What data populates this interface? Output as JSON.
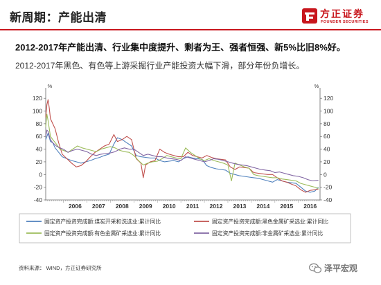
{
  "header": {
    "title": "新周期：产能出清",
    "logo_cn": "方正证券",
    "logo_en": "FOUNDER SECURITIES"
  },
  "headline": "2012-2017年产能出清、行业集中度提升、剩者为王、强者恒强、新5%比旧8%好。",
  "subline": "2012-2017年黑色、有色等上游采掘行业产能投资大幅下滑，部分年份负增长。",
  "source": "资料来源： WIND，方正证券研究所",
  "watermark": "泽平宏观",
  "colors": {
    "brand_red": "#c8161d",
    "coal": "#4f81bd",
    "ferrous": "#c0504d",
    "nonferrous": "#9bbb59",
    "nonmetal": "#8064a2"
  },
  "chart_data": {
    "type": "line",
    "title": "",
    "xlabel": "",
    "ylabel": "",
    "y_unit_left": "%",
    "y_unit_right": "%",
    "ylim": [
      -40,
      130
    ],
    "yticks_left": [
      -40,
      -20,
      0,
      20,
      40,
      60,
      80,
      100,
      120
    ],
    "yticks_right": [
      -40,
      -20,
      0,
      20,
      40,
      60,
      80,
      100,
      120
    ],
    "xlim": [
      2005.25,
      2016.92
    ],
    "xticks": [
      "2006",
      "2007",
      "2008",
      "2009",
      "2010",
      "2011",
      "2012",
      "2013",
      "2014",
      "2015",
      "2016"
    ],
    "grid": false,
    "legend_position": "bottom",
    "series": [
      {
        "name": "固定资产投资完成额:煤炭开采和洗选业:累计同比",
        "color": "#4f81bd",
        "points": [
          [
            2005.25,
            55
          ],
          [
            2005.35,
            65
          ],
          [
            2005.45,
            52
          ],
          [
            2005.55,
            50
          ],
          [
            2005.65,
            42
          ],
          [
            2005.8,
            35
          ],
          [
            2005.95,
            28
          ],
          [
            2006.15,
            25
          ],
          [
            2006.35,
            22
          ],
          [
            2006.55,
            20
          ],
          [
            2006.75,
            18
          ],
          [
            2006.95,
            20
          ],
          [
            2007.15,
            22
          ],
          [
            2007.35,
            25
          ],
          [
            2007.55,
            27
          ],
          [
            2007.75,
            30
          ],
          [
            2007.95,
            32
          ],
          [
            2008.15,
            48
          ],
          [
            2008.3,
            58
          ],
          [
            2008.5,
            55
          ],
          [
            2008.7,
            50
          ],
          [
            2008.9,
            45
          ],
          [
            2009.1,
            30
          ],
          [
            2009.3,
            28
          ],
          [
            2009.5,
            27
          ],
          [
            2009.7,
            26
          ],
          [
            2009.9,
            26
          ],
          [
            2010.1,
            22
          ],
          [
            2010.3,
            20
          ],
          [
            2010.5,
            21
          ],
          [
            2010.7,
            22
          ],
          [
            2010.9,
            20
          ],
          [
            2011.1,
            25
          ],
          [
            2011.3,
            28
          ],
          [
            2011.5,
            26
          ],
          [
            2011.7,
            25
          ],
          [
            2011.9,
            24
          ],
          [
            2012.1,
            14
          ],
          [
            2012.3,
            11
          ],
          [
            2012.5,
            9
          ],
          [
            2012.7,
            8
          ],
          [
            2012.9,
            7
          ],
          [
            2013.1,
            2
          ],
          [
            2013.3,
            0
          ],
          [
            2013.5,
            -2
          ],
          [
            2013.7,
            -3
          ],
          [
            2013.9,
            -4
          ],
          [
            2014.1,
            -5
          ],
          [
            2014.3,
            -6
          ],
          [
            2014.5,
            -8
          ],
          [
            2014.7,
            -10
          ],
          [
            2014.9,
            -12
          ],
          [
            2015.1,
            -8
          ],
          [
            2015.3,
            -10
          ],
          [
            2015.5,
            -12
          ],
          [
            2015.7,
            -13
          ],
          [
            2015.9,
            -14
          ],
          [
            2016.1,
            -20
          ],
          [
            2016.3,
            -26
          ],
          [
            2016.5,
            -28
          ],
          [
            2016.7,
            -26
          ],
          [
            2016.85,
            -20
          ]
        ]
      },
      {
        "name": "固定资产投资完成额:黑色金属矿采选业:累计同比",
        "color": "#c0504d",
        "points": [
          [
            2005.25,
            90
          ],
          [
            2005.3,
            110
          ],
          [
            2005.35,
            118
          ],
          [
            2005.4,
            105
          ],
          [
            2005.45,
            88
          ],
          [
            2005.55,
            80
          ],
          [
            2005.65,
            72
          ],
          [
            2005.8,
            50
          ],
          [
            2005.95,
            32
          ],
          [
            2006.15,
            25
          ],
          [
            2006.35,
            18
          ],
          [
            2006.55,
            12
          ],
          [
            2006.75,
            14
          ],
          [
            2006.95,
            20
          ],
          [
            2007.15,
            28
          ],
          [
            2007.35,
            35
          ],
          [
            2007.55,
            40
          ],
          [
            2007.75,
            45
          ],
          [
            2007.95,
            48
          ],
          [
            2008.15,
            63
          ],
          [
            2008.3,
            52
          ],
          [
            2008.5,
            55
          ],
          [
            2008.7,
            60
          ],
          [
            2008.9,
            55
          ],
          [
            2009.1,
            25
          ],
          [
            2009.3,
            18
          ],
          [
            2009.4,
            -5
          ],
          [
            2009.5,
            15
          ],
          [
            2009.7,
            20
          ],
          [
            2009.9,
            22
          ],
          [
            2010.1,
            40
          ],
          [
            2010.3,
            35
          ],
          [
            2010.5,
            32
          ],
          [
            2010.7,
            30
          ],
          [
            2010.9,
            28
          ],
          [
            2011.1,
            28
          ],
          [
            2011.3,
            35
          ],
          [
            2011.5,
            30
          ],
          [
            2011.7,
            28
          ],
          [
            2011.9,
            26
          ],
          [
            2012.1,
            30
          ],
          [
            2012.3,
            27
          ],
          [
            2012.5,
            25
          ],
          [
            2012.7,
            24
          ],
          [
            2012.9,
            23
          ],
          [
            2013.1,
            12
          ],
          [
            2013.3,
            8
          ],
          [
            2013.5,
            12
          ],
          [
            2013.7,
            11
          ],
          [
            2013.9,
            10
          ],
          [
            2014.1,
            3
          ],
          [
            2014.3,
            2
          ],
          [
            2014.5,
            1
          ],
          [
            2014.7,
            0
          ],
          [
            2014.9,
            0
          ],
          [
            2015.1,
            -5
          ],
          [
            2015.3,
            -10
          ],
          [
            2015.5,
            -12
          ],
          [
            2015.7,
            -15
          ],
          [
            2015.9,
            -18
          ],
          [
            2016.1,
            -24
          ],
          [
            2016.3,
            -28
          ],
          [
            2016.5,
            -25
          ],
          [
            2016.7,
            -24
          ],
          [
            2016.85,
            -23
          ]
        ]
      },
      {
        "name": "固定资产投资完成额:有色金属矿采选业:累计同比",
        "color": "#9bbb59",
        "points": [
          [
            2005.25,
            75
          ],
          [
            2005.3,
            95
          ],
          [
            2005.35,
            85
          ],
          [
            2005.45,
            60
          ],
          [
            2005.55,
            55
          ],
          [
            2005.7,
            48
          ],
          [
            2005.85,
            40
          ],
          [
            2006.0,
            38
          ],
          [
            2006.2,
            35
          ],
          [
            2006.4,
            40
          ],
          [
            2006.6,
            45
          ],
          [
            2006.8,
            42
          ],
          [
            2007.0,
            40
          ],
          [
            2007.2,
            38
          ],
          [
            2007.4,
            36
          ],
          [
            2007.6,
            40
          ],
          [
            2007.8,
            42
          ],
          [
            2008.0,
            44
          ],
          [
            2008.2,
            42
          ],
          [
            2008.4,
            38
          ],
          [
            2008.6,
            36
          ],
          [
            2008.8,
            35
          ],
          [
            2009.0,
            30
          ],
          [
            2009.2,
            22
          ],
          [
            2009.4,
            15
          ],
          [
            2009.6,
            18
          ],
          [
            2009.8,
            20
          ],
          [
            2010.0,
            21
          ],
          [
            2010.2,
            25
          ],
          [
            2010.4,
            30
          ],
          [
            2010.6,
            28
          ],
          [
            2010.8,
            26
          ],
          [
            2011.0,
            25
          ],
          [
            2011.2,
            42
          ],
          [
            2011.4,
            35
          ],
          [
            2011.6,
            30
          ],
          [
            2011.8,
            25
          ],
          [
            2012.0,
            22
          ],
          [
            2012.2,
            25
          ],
          [
            2012.4,
            22
          ],
          [
            2012.6,
            20
          ],
          [
            2012.8,
            18
          ],
          [
            2013.0,
            15
          ],
          [
            2013.15,
            -10
          ],
          [
            2013.3,
            18
          ],
          [
            2013.5,
            15
          ],
          [
            2013.7,
            12
          ],
          [
            2013.9,
            10
          ],
          [
            2014.1,
            0
          ],
          [
            2014.3,
            -2
          ],
          [
            2014.5,
            -3
          ],
          [
            2014.7,
            -4
          ],
          [
            2014.9,
            -5
          ],
          [
            2015.1,
            -5
          ],
          [
            2015.3,
            -7
          ],
          [
            2015.5,
            -8
          ],
          [
            2015.7,
            -9
          ],
          [
            2015.9,
            -10
          ],
          [
            2016.1,
            -14
          ],
          [
            2016.3,
            -16
          ],
          [
            2016.5,
            -18
          ],
          [
            2016.7,
            -20
          ],
          [
            2016.85,
            -22
          ]
        ]
      },
      {
        "name": "固定资产投资完成额:非金属矿采选业:累计同比",
        "color": "#8064a2",
        "points": [
          [
            2005.25,
            60
          ],
          [
            2005.3,
            70
          ],
          [
            2005.35,
            68
          ],
          [
            2005.45,
            55
          ],
          [
            2005.55,
            50
          ],
          [
            2005.7,
            45
          ],
          [
            2005.85,
            42
          ],
          [
            2006.0,
            40
          ],
          [
            2006.2,
            35
          ],
          [
            2006.4,
            38
          ],
          [
            2006.6,
            40
          ],
          [
            2006.8,
            38
          ],
          [
            2007.0,
            36
          ],
          [
            2007.2,
            32
          ],
          [
            2007.4,
            30
          ],
          [
            2007.6,
            32
          ],
          [
            2007.8,
            33
          ],
          [
            2008.0,
            34
          ],
          [
            2008.2,
            36
          ],
          [
            2008.4,
            40
          ],
          [
            2008.6,
            42
          ],
          [
            2008.8,
            40
          ],
          [
            2009.0,
            40
          ],
          [
            2009.2,
            35
          ],
          [
            2009.4,
            30
          ],
          [
            2009.6,
            32
          ],
          [
            2009.8,
            30
          ],
          [
            2010.0,
            28
          ],
          [
            2010.2,
            28
          ],
          [
            2010.4,
            26
          ],
          [
            2010.6,
            25
          ],
          [
            2010.8,
            24
          ],
          [
            2011.0,
            22
          ],
          [
            2011.2,
            28
          ],
          [
            2011.4,
            26
          ],
          [
            2011.6,
            24
          ],
          [
            2011.8,
            22
          ],
          [
            2012.0,
            20
          ],
          [
            2012.2,
            22
          ],
          [
            2012.4,
            25
          ],
          [
            2012.6,
            24
          ],
          [
            2012.8,
            22
          ],
          [
            2013.0,
            20
          ],
          [
            2013.2,
            18
          ],
          [
            2013.4,
            16
          ],
          [
            2013.6,
            15
          ],
          [
            2013.8,
            14
          ],
          [
            2014.0,
            12
          ],
          [
            2014.2,
            10
          ],
          [
            2014.4,
            8
          ],
          [
            2014.6,
            7
          ],
          [
            2014.8,
            6
          ],
          [
            2015.0,
            3
          ],
          [
            2015.2,
            4
          ],
          [
            2015.4,
            2
          ],
          [
            2015.6,
            0
          ],
          [
            2015.8,
            -2
          ],
          [
            2016.0,
            -3
          ],
          [
            2016.2,
            -5
          ],
          [
            2016.4,
            -8
          ],
          [
            2016.6,
            -10
          ],
          [
            2016.85,
            -9
          ]
        ]
      }
    ]
  }
}
